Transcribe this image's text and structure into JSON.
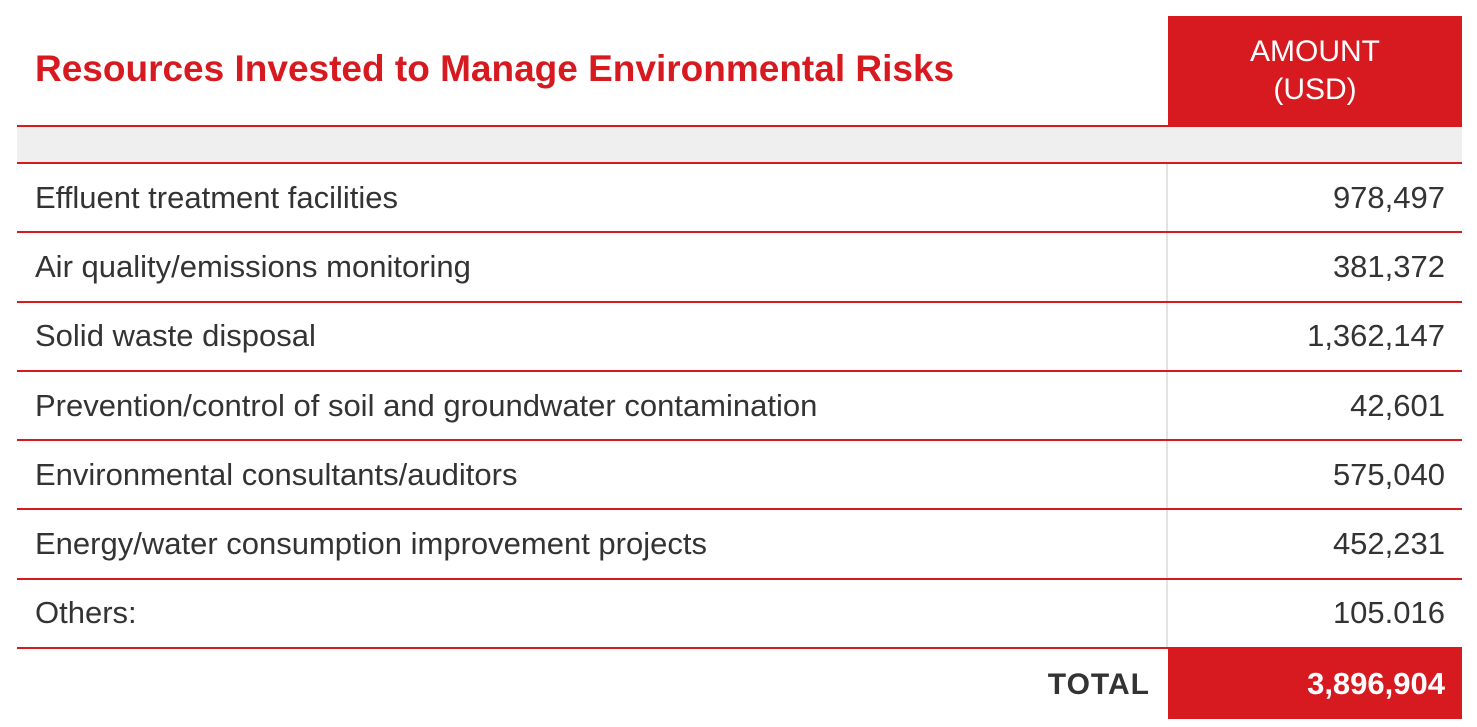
{
  "title": "Resources Invested to Manage Environmental Risks",
  "amount_header": {
    "line1": "AMOUNT",
    "line2": "(USD)"
  },
  "rows": [
    {
      "label": "Effluent treatment facilities",
      "value": "978,497"
    },
    {
      "label": "Air quality/emissions monitoring",
      "value": "381,372"
    },
    {
      "label": "Solid waste disposal",
      "value": "1,362,147"
    },
    {
      "label": "Prevention/control of soil and groundwater contamination",
      "value": "42,601"
    },
    {
      "label": "Environmental consultants/auditors",
      "value": "575,040"
    },
    {
      "label": "Energy/water consumption improvement projects",
      "value": "452,231"
    },
    {
      "label": "Others:",
      "value": "105.016"
    }
  ],
  "total": {
    "label": "TOTAL",
    "value": "3,896,904"
  },
  "colors": {
    "accent": "#d71920",
    "band": "#efefef",
    "text": "#333333"
  }
}
